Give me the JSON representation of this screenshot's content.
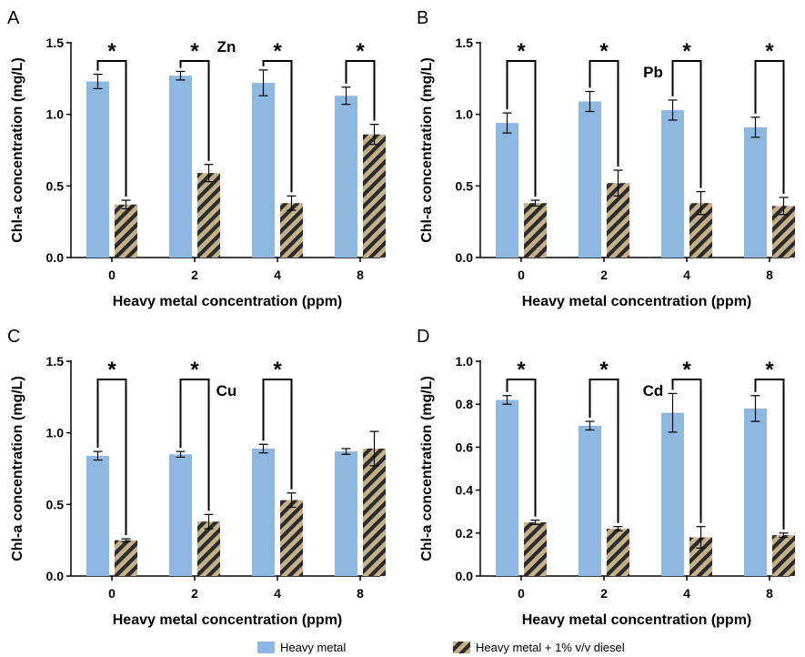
{
  "legend": {
    "items": [
      {
        "label": "Heavy metal",
        "color": "#8db8e2",
        "pattern": "solid"
      },
      {
        "label": "Heavy metal + 1% v/v diesel",
        "color": "#c4b28a",
        "pattern": "diagonal-stripes-dark"
      }
    ]
  },
  "chart_data": [
    {
      "type": "bar",
      "panel": "A",
      "metal": "Zn",
      "categories": [
        "0",
        "2",
        "4",
        "8"
      ],
      "xlabel": "Heavy metal concentration (ppm)",
      "ylabel": "Chl-a concentration (mg/L)",
      "ylim": [
        0,
        1.5
      ],
      "yticks": [
        0.0,
        0.5,
        1.0,
        1.5
      ],
      "ytick_labels": [
        "0.0",
        "0.5",
        "1.0",
        "1.5"
      ],
      "series": [
        {
          "values": [
            1.23,
            1.27,
            1.22,
            1.13
          ],
          "errors": [
            0.05,
            0.03,
            0.09,
            0.06
          ]
        },
        {
          "values": [
            0.37,
            0.59,
            0.38,
            0.86
          ],
          "errors": [
            0.03,
            0.06,
            0.05,
            0.07
          ]
        }
      ],
      "significance": [
        "*",
        "*",
        "*",
        "*"
      ]
    },
    {
      "type": "bar",
      "panel": "B",
      "metal": "Pb",
      "categories": [
        "0",
        "2",
        "4",
        "8"
      ],
      "xlabel": "Heavy metal concentration (ppm)",
      "ylabel": "Chl-a concentration (mg/L)",
      "ylim": [
        0,
        1.5
      ],
      "yticks": [
        0.0,
        0.5,
        1.0,
        1.5
      ],
      "ytick_labels": [
        "0.0",
        "0.5",
        "1.0",
        "1.5"
      ],
      "series": [
        {
          "values": [
            0.94,
            1.09,
            1.03,
            0.91
          ],
          "errors": [
            0.07,
            0.07,
            0.07,
            0.07
          ]
        },
        {
          "values": [
            0.38,
            0.52,
            0.38,
            0.36
          ],
          "errors": [
            0.02,
            0.09,
            0.08,
            0.06
          ]
        }
      ],
      "significance": [
        "*",
        "*",
        "*",
        "*"
      ]
    },
    {
      "type": "bar",
      "panel": "C",
      "metal": "Cu",
      "categories": [
        "0",
        "2",
        "4",
        "8"
      ],
      "xlabel": "Heavy metal concentration (ppm)",
      "ylabel": "Chl-a concentration (mg/L)",
      "ylim": [
        0,
        1.5
      ],
      "yticks": [
        0.0,
        0.5,
        1.0,
        1.5
      ],
      "ytick_labels": [
        "0.0",
        "0.5",
        "1.0",
        "1.5"
      ],
      "series": [
        {
          "values": [
            0.84,
            0.85,
            0.89,
            0.87
          ],
          "errors": [
            0.03,
            0.02,
            0.03,
            0.02
          ]
        },
        {
          "values": [
            0.25,
            0.38,
            0.53,
            0.89
          ],
          "errors": [
            0.01,
            0.05,
            0.05,
            0.12
          ]
        }
      ],
      "significance": [
        "*",
        "*",
        "*",
        ""
      ]
    },
    {
      "type": "bar",
      "panel": "D",
      "metal": "Cd",
      "categories": [
        "0",
        "2",
        "4",
        "8"
      ],
      "xlabel": "Heavy metal concentration (ppm)",
      "ylabel": "Chl-a concentration (mg/L)",
      "ylim": [
        0,
        1.0
      ],
      "yticks": [
        0.0,
        0.2,
        0.4,
        0.6,
        0.8,
        1.0
      ],
      "ytick_labels": [
        "0.0",
        "0.2",
        "0.4",
        "0.6",
        "0.8",
        "1.0"
      ],
      "series": [
        {
          "values": [
            0.82,
            0.7,
            0.76,
            0.78
          ],
          "errors": [
            0.02,
            0.02,
            0.09,
            0.06
          ]
        },
        {
          "values": [
            0.25,
            0.22,
            0.18,
            0.19
          ],
          "errors": [
            0.01,
            0.01,
            0.05,
            0.01
          ]
        }
      ],
      "significance": [
        "*",
        "*",
        "*",
        "*"
      ]
    }
  ]
}
